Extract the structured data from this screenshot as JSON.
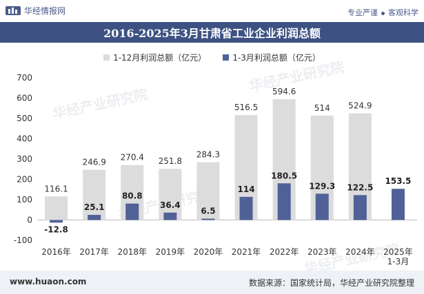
{
  "header": {
    "brand": "华经情报网",
    "tagline_left": "专业严谨",
    "tagline_right": "客观科学"
  },
  "chart_data": {
    "type": "bar",
    "title": "2016-2025年3月甘肃省工业企业利润总额",
    "categories": [
      "2016年",
      "2017年",
      "2018年",
      "2019年",
      "2020年",
      "2021年",
      "2022年",
      "2023年",
      "2024年",
      "2025年\n1-3月"
    ],
    "series": [
      {
        "name": "1-12月利润总额（亿元）",
        "color": "#dcdcdc",
        "values": [
          116.1,
          246.9,
          270.4,
          251.8,
          284.3,
          516.5,
          594.6,
          514,
          524.9,
          null
        ]
      },
      {
        "name": "1-3月利润总额（亿元）",
        "color": "#4f6196",
        "values": [
          -12.8,
          25.1,
          80.8,
          36.4,
          6.5,
          114,
          180.5,
          129.3,
          122.5,
          153.5
        ]
      }
    ],
    "ylim": [
      -100,
      700
    ],
    "yticks": [
      -100,
      0,
      100,
      200,
      300,
      400,
      500,
      600,
      700
    ],
    "legend_position": "top",
    "grid": false
  },
  "watermark": "华经产业研究院",
  "footer": {
    "url": "www.huaon.com",
    "source": "数据来源：国家统计局，华经产业研究院整理"
  }
}
